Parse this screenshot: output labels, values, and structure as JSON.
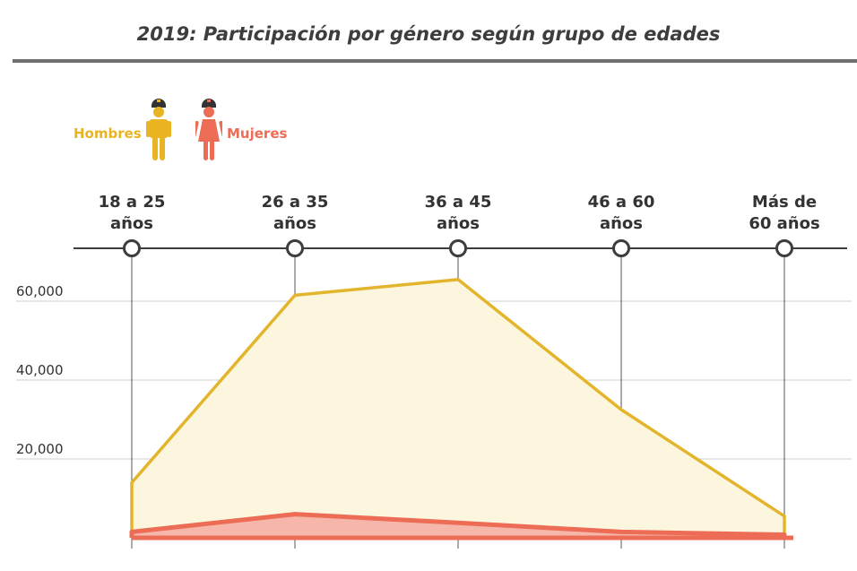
{
  "chart_data": {
    "type": "area",
    "title": "2019: Participación por género según grupo de edades",
    "categories": [
      [
        "18 a 25",
        "años"
      ],
      [
        "26 a 35",
        "años"
      ],
      [
        "36 a 45",
        "años"
      ],
      [
        "46 a 60",
        "años"
      ],
      [
        "Más de",
        "60 años"
      ]
    ],
    "series": [
      {
        "name": "Hombres",
        "values": [
          14000,
          61500,
          65500,
          32500,
          5500
        ],
        "color": "#e3b52c",
        "fill": "#fdf6de"
      },
      {
        "name": "Mujeres",
        "values": [
          1500,
          6000,
          3800,
          1500,
          800
        ],
        "color": "#ec6c56",
        "fill": "#f6b7aa"
      }
    ],
    "yticks": [
      20000,
      40000,
      60000
    ],
    "ytick_labels": [
      "20,000",
      "40,000",
      "60,000"
    ],
    "ylim": [
      0,
      70000
    ],
    "grid": true,
    "legend_position": "top-left"
  },
  "legend": {
    "men": "Hombres",
    "women": "Mujeres"
  },
  "colors": {
    "men": "#e8b422",
    "women": "#ec6c56",
    "axis": "#3d3d3d",
    "grid": "#cfcfcf"
  }
}
